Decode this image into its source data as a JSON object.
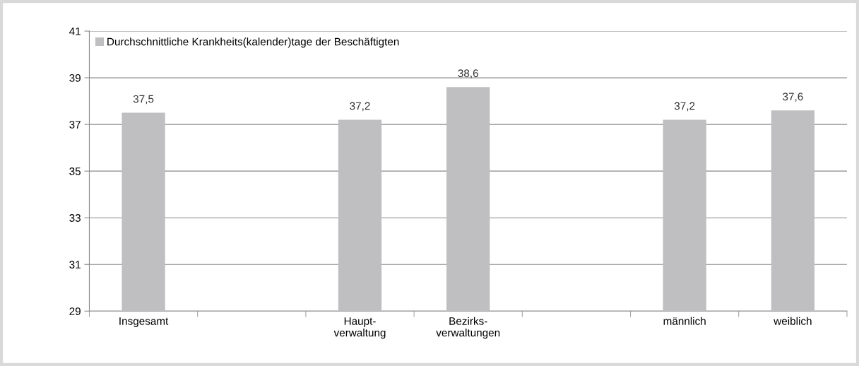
{
  "chart_data": {
    "type": "bar",
    "categories": [
      "Insgesamt",
      null,
      "Haupt-\nverwaltung",
      "Bezirks-\nverwaltungen",
      null,
      "männlich",
      "weiblich"
    ],
    "series": [
      {
        "name": "Durchschnittliche Krankheits(kalender)tage der Beschäftigten",
        "color": "#bfbfc1",
        "values": [
          37.5,
          null,
          37.2,
          38.6,
          null,
          37.2,
          37.6
        ],
        "value_labels": [
          "37,5",
          null,
          "37,2",
          "38,6",
          null,
          "37,2",
          "37,6"
        ]
      }
    ],
    "ylim": [
      29,
      41
    ],
    "yticks": [
      29,
      31,
      33,
      35,
      37,
      39,
      41
    ],
    "grid": "y",
    "legend": "top left"
  }
}
